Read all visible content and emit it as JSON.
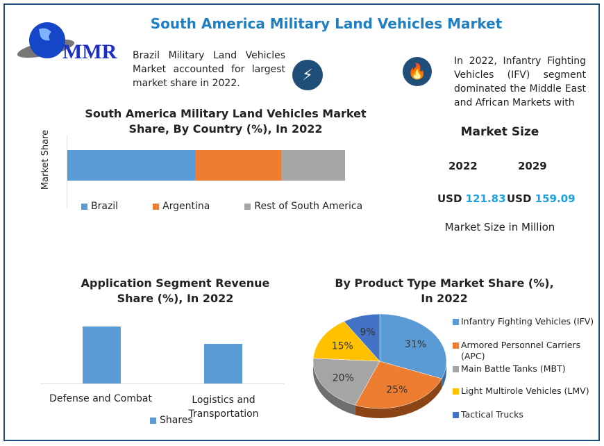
{
  "header": {
    "title": "South America Military Land Vehicles Market",
    "logo_text": "MMR"
  },
  "insights": {
    "left": "Brazil Military Land Vehicles Market accounted for largest market share in 2022.",
    "left_icon": "lightning-icon",
    "right": "In 2022, Infantry Fighting Vehicles (IFV) segment dominated the Middle East and African Markets with",
    "right_icon": "flame-icon"
  },
  "market_size": {
    "title": "Market Size",
    "years": [
      "2022",
      "2029"
    ],
    "currency": "USD",
    "values": [
      "121.83",
      "159.09"
    ],
    "unit_label": "Market Size in Million"
  },
  "colors": {
    "blue": "#5b9bd5",
    "orange": "#ed7d31",
    "gray": "#a5a5a5",
    "yellow": "#ffc000",
    "darkblue": "#4472c4"
  },
  "chart_data": [
    {
      "type": "bar",
      "orientation": "horizontal-stacked",
      "title": "South America Military Land Vehicles Market Share, By Country (%), In 2022",
      "ylabel": "Market Share",
      "series": [
        {
          "name": "Brazil",
          "values": [
            46
          ]
        },
        {
          "name": "Argentina",
          "values": [
            31
          ]
        },
        {
          "name": "Rest of South America",
          "values": [
            23
          ]
        }
      ],
      "legend": "bottom"
    },
    {
      "type": "bar",
      "title": "Application Segment Revenue Share (%), In 2022",
      "categories": [
        "Defense and Combat",
        "Logistics and Transportation"
      ],
      "series": [
        {
          "name": "Shares",
          "values": [
            59,
            41
          ]
        }
      ],
      "legend": "bottom"
    },
    {
      "type": "pie",
      "title": "By Product Type Market Share (%), In 2022",
      "categories": [
        "Infantry Fighting Vehicles (IFV)",
        "Armored Personnel Carriers (APC)",
        "Main Battle Tanks (MBT)",
        "Light Multirole Vehicles (LMV)",
        "Tactical Trucks"
      ],
      "values": [
        31,
        25,
        20,
        15,
        9
      ],
      "labels": [
        "31%",
        "25%",
        "20%",
        "15%",
        "9%"
      ],
      "legend": "right"
    }
  ]
}
